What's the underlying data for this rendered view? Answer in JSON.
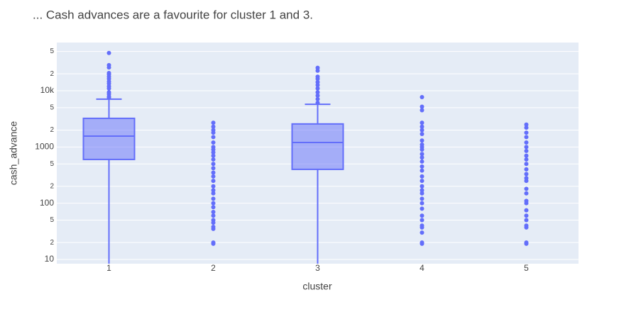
{
  "chart_data": {
    "type": "box",
    "title": "... Cash advances are a favourite for cluster 1 and 3.",
    "xlabel": "cluster",
    "ylabel": "cash_advance",
    "categories": [
      "1",
      "2",
      "3",
      "4",
      "5"
    ],
    "color": "#636efa",
    "log_y": true,
    "grid": true,
    "ylim": [
      8.4,
      72000
    ],
    "yticks": [
      10,
      {
        "value": 20,
        "label": "2"
      },
      {
        "value": 50,
        "label": "5"
      },
      100,
      {
        "value": 200,
        "label": "2"
      },
      {
        "value": 500,
        "label": "5"
      },
      1000,
      {
        "value": 2000,
        "label": "2"
      },
      {
        "value": 5000,
        "label": "5"
      },
      {
        "value": 10000,
        "label": "10k"
      },
      {
        "value": 20000,
        "label": "2"
      },
      {
        "value": 50000,
        "label": "5"
      }
    ],
    "boxes": [
      {
        "q1": 600,
        "median": 1560,
        "q3": 3230,
        "lowerfence": 1,
        "upperfence": 7080,
        "outliers": [
          47000,
          28500,
          26000,
          20700,
          19500,
          17800,
          16300,
          14600,
          13400,
          12000,
          11000,
          9400,
          8700,
          7900,
          7500
        ]
      },
      {
        "q1": null,
        "median": null,
        "q3": null,
        "lowerfence": null,
        "upperfence": null,
        "outliers": [
          2700,
          2300,
          2000,
          1800,
          1500,
          1200,
          1000,
          900,
          800,
          700,
          600,
          500,
          420,
          350,
          300,
          250,
          200,
          170,
          150,
          120,
          100,
          85,
          70,
          60,
          50,
          45,
          38,
          35,
          20,
          19
        ]
      },
      {
        "q1": 400,
        "median": 1200,
        "q3": 2570,
        "lowerfence": 1,
        "upperfence": 5750,
        "outliers": [
          25600,
          22700,
          17800,
          16300,
          14200,
          12600,
          11000,
          9400,
          8200,
          7100,
          6100
        ]
      },
      {
        "q1": null,
        "median": null,
        "q3": null,
        "lowerfence": null,
        "upperfence": null,
        "outliers": [
          7700,
          5200,
          4500,
          2700,
          2300,
          2000,
          1700,
          1300,
          1100,
          1000,
          900,
          750,
          650,
          550,
          450,
          380,
          300,
          250,
          200,
          170,
          150,
          120,
          100,
          80,
          60,
          50,
          40,
          37,
          30,
          20,
          19
        ]
      },
      {
        "q1": null,
        "median": null,
        "q3": null,
        "lowerfence": null,
        "upperfence": null,
        "outliers": [
          2500,
          2200,
          1800,
          1500,
          1200,
          1000,
          850,
          700,
          600,
          500,
          400,
          330,
          280,
          250,
          180,
          150,
          110,
          100,
          75,
          60,
          50,
          40,
          37,
          20,
          19
        ]
      }
    ]
  }
}
